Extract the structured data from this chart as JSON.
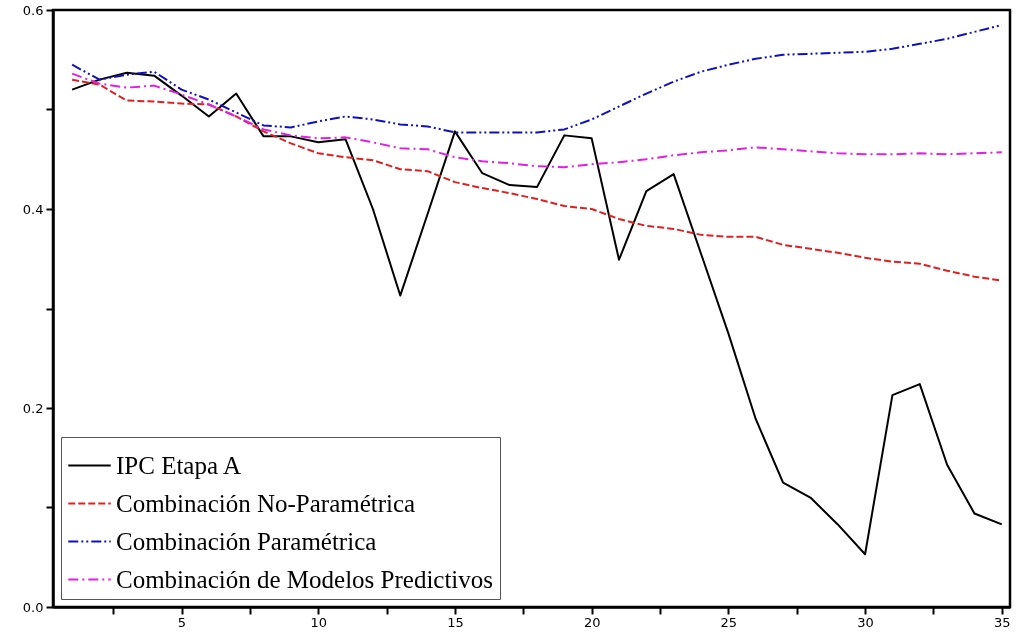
{
  "chart_data": {
    "type": "line",
    "x": [
      1,
      2,
      3,
      4,
      5,
      6,
      7,
      8,
      9,
      10,
      11,
      12,
      13,
      14,
      15,
      16,
      17,
      18,
      19,
      20,
      21,
      22,
      23,
      24,
      25,
      26,
      27,
      28,
      29,
      30,
      31,
      32,
      33,
      34,
      35
    ],
    "series": [
      {
        "name": "IPC Etapa A",
        "color": "#000000",
        "line_style": "solid",
        "values": [
          0.52,
          0.53,
          0.537,
          0.534,
          0.514,
          0.493,
          0.516,
          0.473,
          0.473,
          0.467,
          0.47,
          0.4,
          0.313,
          0.395,
          0.478,
          0.436,
          0.424,
          0.422,
          0.474,
          0.471,
          0.349,
          0.418,
          0.435,
          0.355,
          0.275,
          0.189,
          0.125,
          0.11,
          0.083,
          0.053,
          0.213,
          0.224,
          0.143,
          0.094,
          0.083
        ]
      },
      {
        "name": "Combinación No-Paramétrica",
        "color": "#e02020",
        "line_style": "dashed",
        "values": [
          0.53,
          0.525,
          0.509,
          0.508,
          0.506,
          0.505,
          0.493,
          0.478,
          0.466,
          0.456,
          0.452,
          0.449,
          0.44,
          0.438,
          0.427,
          0.421,
          0.416,
          0.41,
          0.403,
          0.4,
          0.39,
          0.383,
          0.38,
          0.374,
          0.372,
          0.372,
          0.364,
          0.36,
          0.356,
          0.351,
          0.347,
          0.345,
          0.338,
          0.332,
          0.328
        ]
      },
      {
        "name": "Combinación Paramétrica",
        "color": "#1010c0",
        "line_style": "dashdotdot",
        "values": [
          0.545,
          0.53,
          0.535,
          0.538,
          0.52,
          0.51,
          0.497,
          0.484,
          0.482,
          0.488,
          0.493,
          0.49,
          0.485,
          0.483,
          0.477,
          0.477,
          0.477,
          0.477,
          0.48,
          0.49,
          0.503,
          0.516,
          0.528,
          0.538,
          0.545,
          0.551,
          0.555,
          0.556,
          0.557,
          0.558,
          0.561,
          0.566,
          0.571,
          0.578,
          0.585
        ]
      },
      {
        "name": "Combinación de Modelos Predictivos",
        "color": "#e020e0",
        "line_style": "dashdot",
        "values": [
          0.536,
          0.526,
          0.522,
          0.524,
          0.515,
          0.505,
          0.493,
          0.48,
          0.474,
          0.471,
          0.472,
          0.467,
          0.461,
          0.46,
          0.452,
          0.448,
          0.446,
          0.443,
          0.442,
          0.445,
          0.447,
          0.45,
          0.454,
          0.457,
          0.459,
          0.462,
          0.46,
          0.458,
          0.456,
          0.455,
          0.455,
          0.456,
          0.455,
          0.456,
          0.457
        ]
      }
    ],
    "xlim": [
      0.3,
      35.3
    ],
    "xticks": [
      {
        "value": 2.5,
        "label": null
      },
      5,
      {
        "value": 7.5,
        "label": null
      },
      10,
      {
        "value": 12.5,
        "label": null
      },
      15,
      {
        "value": 17.5,
        "label": null
      },
      20,
      {
        "value": 22.5,
        "label": null
      },
      25,
      {
        "value": 27.5,
        "label": null
      },
      30,
      {
        "value": 32.5,
        "label": null
      },
      35
    ],
    "ylim": [
      0,
      0.6
    ],
    "yticks": [
      {
        "value": 0,
        "label": "0.0"
      },
      {
        "value": 0.1,
        "label": null
      },
      0.2,
      {
        "value": 0.3,
        "label": null
      },
      0.4,
      {
        "value": 0.5,
        "label": null
      },
      0.6
    ],
    "legend": "bottom left",
    "grid": false
  }
}
